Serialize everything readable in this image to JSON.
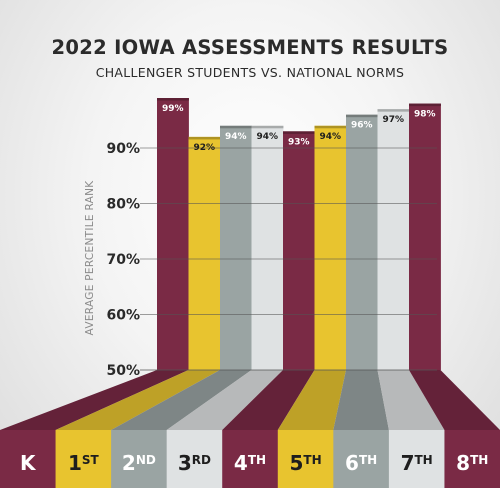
{
  "header": {
    "title": "2022 IOWA ASSESSMENTS RESULTS",
    "subtitle": "CHALLENGER STUDENTS VS. NATIONAL NORMS"
  },
  "colors": {
    "maroon": "#7a2a45",
    "gold": "#e8c42f",
    "slate": "#9aa4a3",
    "light": "#dfe2e3",
    "gridline": "#555555"
  },
  "chart_data": {
    "type": "bar",
    "title": "2022 IOWA ASSESSMENTS RESULTS",
    "subtitle": "CHALLENGER STUDENTS VS. NATIONAL NORMS",
    "xlabel": "",
    "ylabel": "AVERAGE PERCENTILE RANK",
    "ylim": [
      50,
      100
    ],
    "yticks": [
      50,
      60,
      70,
      80,
      90
    ],
    "ytick_labels": [
      "50%",
      "60%",
      "70%",
      "80%",
      "90%"
    ],
    "grid": true,
    "categories": [
      "K",
      "1ST",
      "2ND",
      "3RD",
      "4TH",
      "5TH",
      "6TH",
      "7TH",
      "8TH"
    ],
    "category_labels": [
      {
        "main": "K",
        "sup": ""
      },
      {
        "main": "1",
        "sup": "ST"
      },
      {
        "main": "2",
        "sup": "ND"
      },
      {
        "main": "3",
        "sup": "RD"
      },
      {
        "main": "4",
        "sup": "TH"
      },
      {
        "main": "5",
        "sup": "TH"
      },
      {
        "main": "6",
        "sup": "TH"
      },
      {
        "main": "7",
        "sup": "TH"
      },
      {
        "main": "8",
        "sup": "TH"
      }
    ],
    "values": [
      99,
      92,
      94,
      94,
      93,
      94,
      96,
      97,
      98
    ],
    "value_labels": [
      "99%",
      "92%",
      "94%",
      "94%",
      "93%",
      "94%",
      "96%",
      "97%",
      "98%"
    ],
    "bar_colors": [
      "maroon",
      "gold",
      "slate",
      "light",
      "maroon",
      "gold",
      "slate",
      "light",
      "maroon"
    ]
  }
}
